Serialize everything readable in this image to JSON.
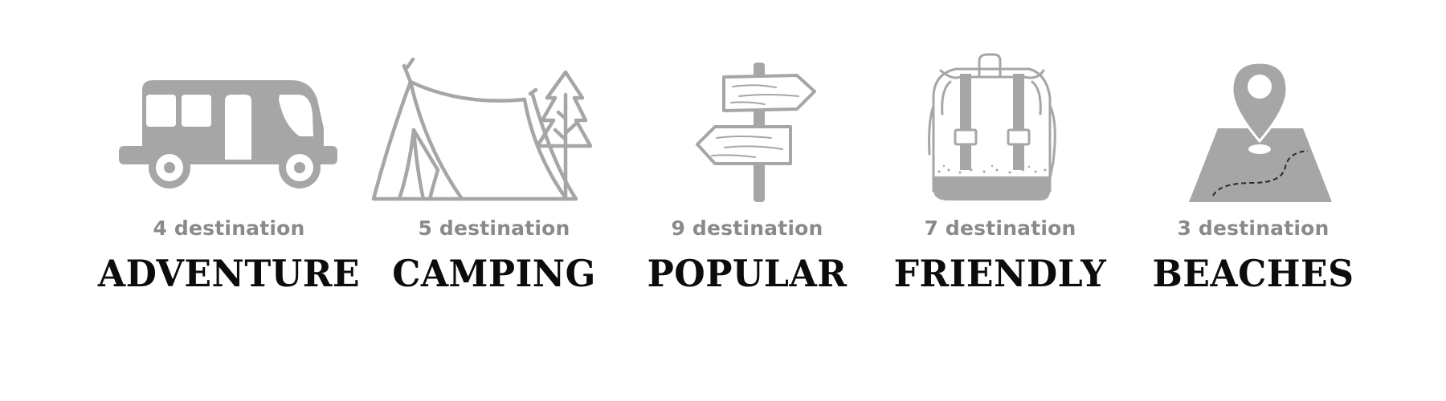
{
  "colors": {
    "icon": "#a6a6a6",
    "count_text": "#8a8a8a",
    "title_text": "#0c0c0c",
    "route_dash": "#3a2323"
  },
  "categories": [
    {
      "icon": "camper-van-icon",
      "count": "4 destination",
      "title": "ADVENTURE"
    },
    {
      "icon": "tent-tree-icon",
      "count": "5 destination",
      "title": "CAMPING"
    },
    {
      "icon": "signpost-icon",
      "count": "9 destination",
      "title": "POPULAR"
    },
    {
      "icon": "backpack-icon",
      "count": "7 destination",
      "title": "FRIENDLY"
    },
    {
      "icon": "map-pin-icon",
      "count": "3 destination",
      "title": "BEACHES"
    }
  ]
}
